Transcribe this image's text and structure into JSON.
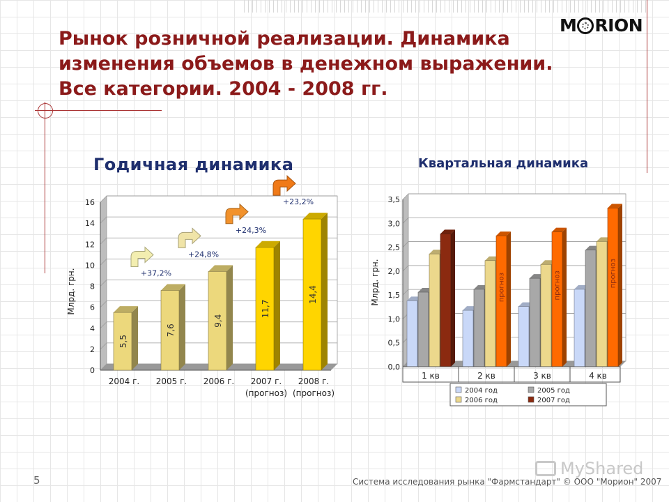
{
  "slide": {
    "title_lines": [
      "Рынок розничной реализации. Динамика",
      "изменения объемов в денежном выражении.",
      "Все категории. 2004 - 2008 гг."
    ],
    "logo_parts": [
      "M",
      "RION"
    ],
    "page_number": "5",
    "footer": "Система исследования рынка \"Фармстандарт\" © ООО \"Морион\" 2007",
    "watermark": "MyShared"
  },
  "chart_data": [
    {
      "type": "bar",
      "title": "Годичная динамика",
      "ylabel": "Млрд. грн.",
      "ylim": [
        0,
        16
      ],
      "yticks": [
        "0",
        "2",
        "4",
        "6",
        "8",
        "10",
        "12",
        "14",
        "16"
      ],
      "categories": [
        "2004 г.",
        "2005 г.",
        "2006 г.",
        "2007 г.",
        "2008 г."
      ],
      "category_sublabels": [
        "",
        "",
        "",
        "(прогноз)",
        "(прогноз)"
      ],
      "values": [
        5.5,
        7.6,
        9.4,
        11.7,
        14.4
      ],
      "value_labels": [
        "5,5",
        "7,6",
        "9,4",
        "11,7",
        "14,4"
      ],
      "forecast": [
        false,
        false,
        false,
        true,
        true
      ],
      "growth_labels": [
        "+37,2%",
        "+24,8%",
        "+24,3%",
        "+23,2%"
      ],
      "grid": true,
      "colors": {
        "actual": "#ecd87c",
        "forecast": "#ffd500",
        "growth_arrow_1": "#f3eeb0",
        "growth_arrow_2": "#f0e4a8",
        "growth_arrow_3": "#f2922c",
        "growth_arrow_4": "#f07a18"
      }
    },
    {
      "type": "bar",
      "title": "Квартальная динамика",
      "ylabel": "Млрд. грн.",
      "ylim": [
        0,
        3.5
      ],
      "yticks": [
        "0,0",
        "0,5",
        "1,0",
        "1,5",
        "2,0",
        "2,5",
        "3,0",
        "3,5"
      ],
      "categories": [
        "1 кв",
        "2 кв",
        "3 кв",
        "4 кв"
      ],
      "series": [
        {
          "name": "2004 год",
          "values": [
            1.38,
            1.18,
            1.26,
            1.62
          ],
          "color": "#c9d8f8"
        },
        {
          "name": "2005 год",
          "values": [
            1.56,
            1.62,
            1.85,
            2.44
          ],
          "color": "#a8a8a8"
        },
        {
          "name": "2006 год",
          "values": [
            2.36,
            2.22,
            2.14,
            2.62
          ],
          "color": "#ecd88c"
        },
        {
          "name": "2007 год",
          "values": [
            2.78,
            2.74,
            2.82,
            3.32
          ],
          "color": "#8b2a10"
        }
      ],
      "series_colors_by_quarter": [
        [
          "#c9d8f8",
          "#a8a8a8",
          "#ecd88c",
          "#8b2a10"
        ],
        [
          "#c9d8f8",
          "#a8a8a8",
          "#ecd88c",
          "#ff6a00"
        ],
        [
          "#c9d8f8",
          "#a8a8a8",
          "#ecd88c",
          "#ff6a00"
        ],
        [
          "#c9d8f8",
          "#a8a8a8",
          "#ecd88c",
          "#ff6a00"
        ]
      ],
      "annotation": "прогноз",
      "legend": "bottom",
      "grid": true
    }
  ]
}
